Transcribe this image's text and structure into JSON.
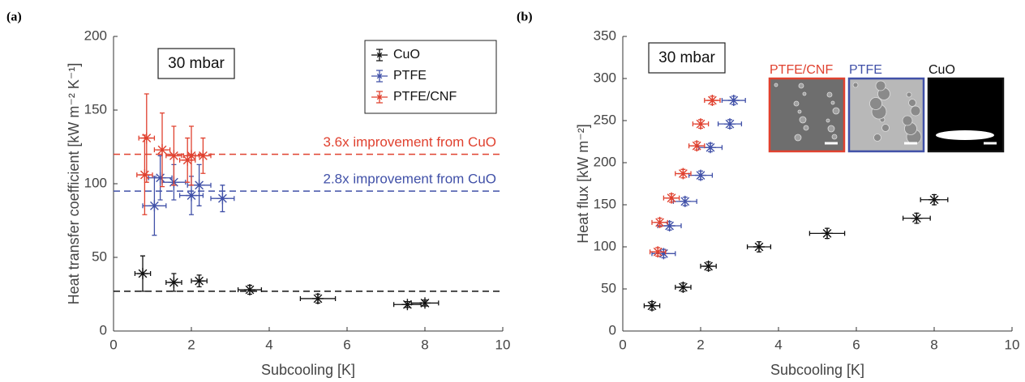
{
  "chart_data": [
    {
      "type": "scatter",
      "panel_label": "(a)",
      "box_label": "30 mbar",
      "x_label": "Subcooling [K]",
      "y_label": "Heat transfer coefficient [kW m⁻² K⁻¹]",
      "xlim": [
        0,
        10
      ],
      "ylim": [
        0,
        200
      ],
      "xticks": [
        0,
        2,
        4,
        6,
        8,
        10
      ],
      "yticks": [
        0,
        50,
        100,
        150,
        200
      ],
      "legend": "upper right",
      "series": [
        {
          "name": "CuO",
          "color": "#111111",
          "x": [
            0.75,
            1.55,
            2.2,
            3.5,
            5.25,
            7.55,
            8.0
          ],
          "y": [
            39,
            33,
            34,
            28,
            22,
            18,
            19
          ],
          "xerr": [
            0.2,
            0.2,
            0.2,
            0.3,
            0.45,
            0.35,
            0.35
          ],
          "yerr": [
            12,
            6,
            4,
            3,
            3,
            2,
            2
          ]
        },
        {
          "name": "PTFE",
          "color": "#4151a8",
          "x": [
            1.05,
            1.2,
            1.55,
            2.0,
            2.2,
            2.8
          ],
          "y": [
            85,
            104,
            101,
            92,
            99,
            90
          ],
          "xerr": [
            0.3,
            0.3,
            0.3,
            0.3,
            0.3,
            0.3
          ],
          "yerr": [
            20,
            15,
            12,
            13,
            14,
            9
          ]
        },
        {
          "name": "PTFE/CNF",
          "color": "#e0412f",
          "x": [
            0.8,
            0.85,
            1.25,
            1.55,
            1.9,
            2.0,
            2.3
          ],
          "y": [
            106,
            131,
            123,
            119,
            116,
            119,
            119
          ],
          "xerr": [
            0.2,
            0.2,
            0.2,
            0.2,
            0.2,
            0.2,
            0.2
          ],
          "yerr": [
            27,
            30,
            25,
            20,
            15,
            20,
            12
          ]
        }
      ],
      "hlines": [
        {
          "y": 120,
          "color": "#e0412f",
          "label": "3.6x improvement from CuO"
        },
        {
          "y": 95,
          "color": "#4151a8",
          "label": "2.8x improvement from CuO"
        },
        {
          "y": 27,
          "color": "#111111"
        }
      ]
    },
    {
      "type": "scatter",
      "panel_label": "(b)",
      "box_label": "30 mbar",
      "x_label": "Subcooling [K]",
      "y_label": "Heat flux [kW m⁻²]",
      "xlim": [
        0,
        10
      ],
      "ylim": [
        0,
        350
      ],
      "xticks": [
        0,
        2,
        4,
        6,
        8,
        10
      ],
      "yticks": [
        0,
        50,
        100,
        150,
        200,
        250,
        300,
        350
      ],
      "series": [
        {
          "color": "#111111",
          "x": [
            0.75,
            1.55,
            2.2,
            3.5,
            5.25,
            7.55,
            8.0
          ],
          "y": [
            30,
            52,
            77,
            100,
            116,
            134,
            156
          ],
          "xerr": [
            0.2,
            0.2,
            0.2,
            0.3,
            0.45,
            0.35,
            0.35
          ],
          "yerr": [
            5,
            5,
            5,
            6,
            6,
            6,
            6
          ]
        },
        {
          "color": "#4151a8",
          "x": [
            1.05,
            1.2,
            1.6,
            2.0,
            2.25,
            2.75,
            2.85
          ],
          "y": [
            92,
            125,
            154,
            185,
            218,
            246,
            274
          ],
          "xerr": [
            0.3,
            0.3,
            0.3,
            0.3,
            0.3,
            0.3,
            0.3
          ],
          "yerr": [
            5,
            5,
            5,
            5,
            5,
            5,
            5
          ]
        },
        {
          "color": "#e0412f",
          "x": [
            0.9,
            0.95,
            1.25,
            1.55,
            1.9,
            2.0,
            2.3
          ],
          "y": [
            94,
            129,
            158,
            187,
            220,
            246,
            274
          ],
          "xerr": [
            0.2,
            0.2,
            0.2,
            0.2,
            0.2,
            0.2,
            0.2
          ],
          "yerr": [
            5,
            5,
            5,
            5,
            5,
            5,
            5
          ]
        }
      ],
      "insets": [
        {
          "label": "PTFE/CNF",
          "color": "#e0412f"
        },
        {
          "label": "PTFE",
          "color": "#4151a8"
        },
        {
          "label": "CuO",
          "color": "#111111"
        }
      ]
    }
  ]
}
